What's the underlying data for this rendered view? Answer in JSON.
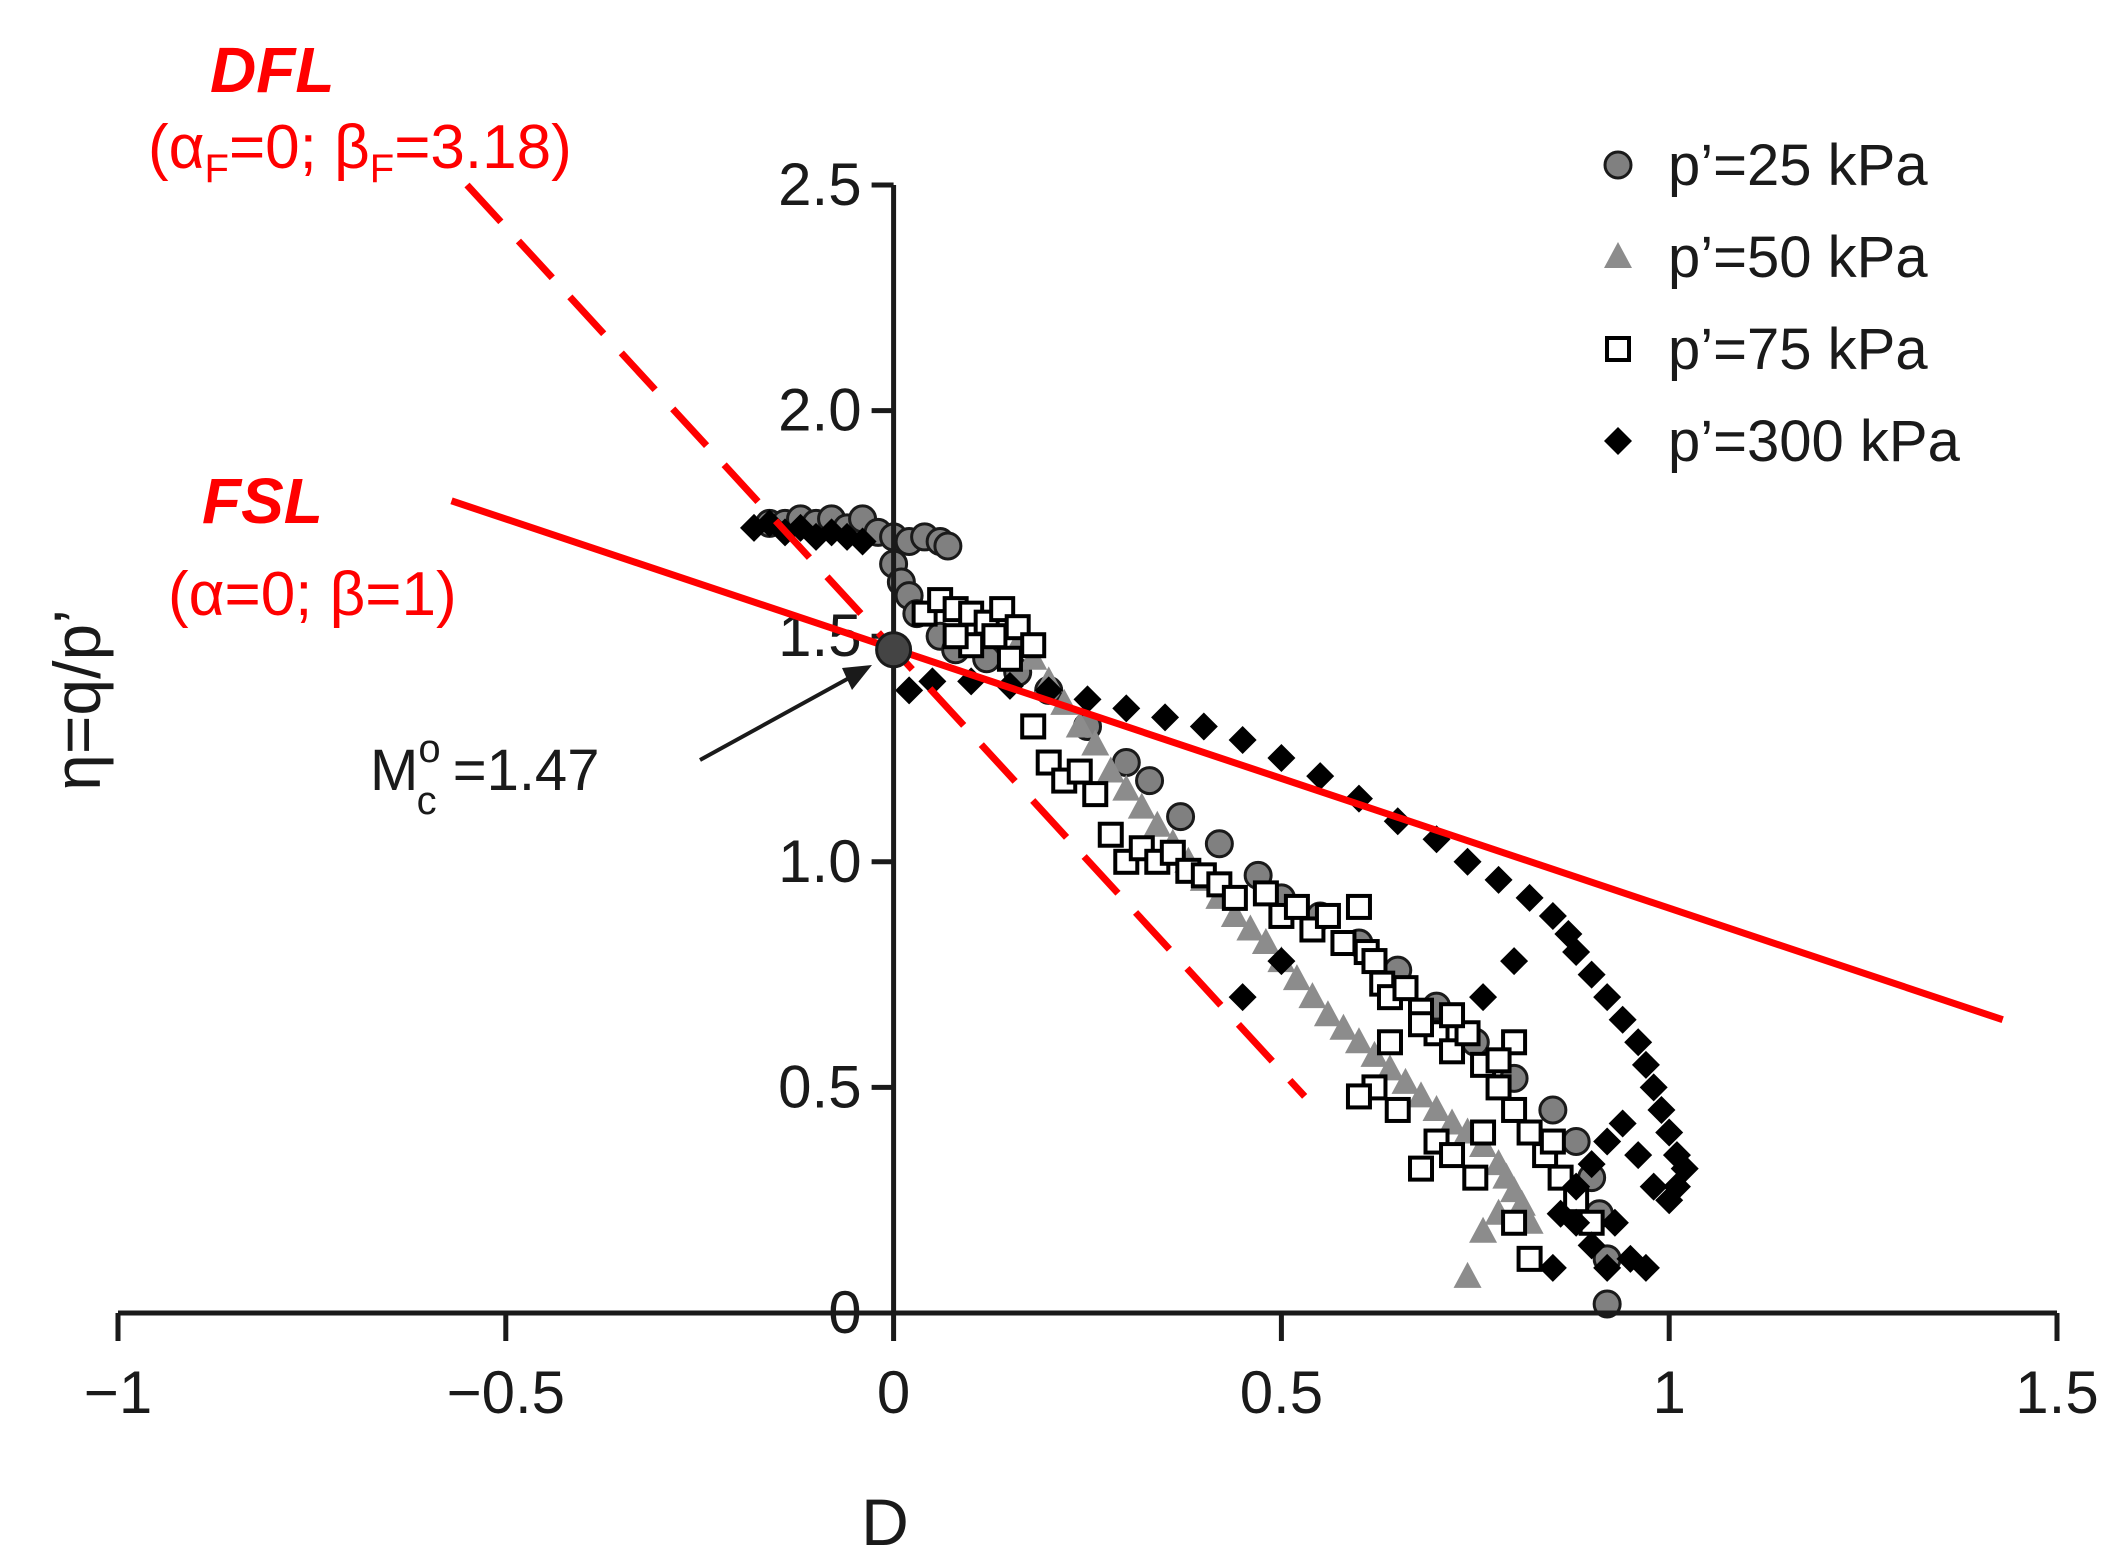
{
  "chart_data": {
    "type": "scatter",
    "title": "",
    "xlabel": "D",
    "ylabel": "η=q/p’",
    "xlim": [
      -1,
      1.5
    ],
    "ylim": [
      0,
      2.5
    ],
    "x_ticks": [
      "−1",
      "−0.5",
      "0",
      "0.5",
      "1",
      "1.5"
    ],
    "y_ticks": [
      "0",
      "0.5",
      "1.0",
      "1.5",
      "2.0",
      "2.5"
    ],
    "grid": false,
    "legend_position": "top-right",
    "series": [
      {
        "name": "p’=25 kPa",
        "marker": "circle",
        "color": "#808080",
        "points": [
          [
            -0.16,
            1.75
          ],
          [
            -0.14,
            1.75
          ],
          [
            -0.12,
            1.76
          ],
          [
            -0.1,
            1.75
          ],
          [
            -0.08,
            1.76
          ],
          [
            -0.06,
            1.74
          ],
          [
            -0.04,
            1.76
          ],
          [
            -0.02,
            1.73
          ],
          [
            0.0,
            1.72
          ],
          [
            0.02,
            1.71
          ],
          [
            0.04,
            1.72
          ],
          [
            0.06,
            1.71
          ],
          [
            0.07,
            1.7
          ],
          [
            0.0,
            1.66
          ],
          [
            0.01,
            1.62
          ],
          [
            0.02,
            1.59
          ],
          [
            0.03,
            1.55
          ],
          [
            0.06,
            1.5
          ],
          [
            0.08,
            1.47
          ],
          [
            0.12,
            1.45
          ],
          [
            0.16,
            1.42
          ],
          [
            0.2,
            1.38
          ],
          [
            0.25,
            1.3
          ],
          [
            0.3,
            1.22
          ],
          [
            0.33,
            1.18
          ],
          [
            0.37,
            1.1
          ],
          [
            0.42,
            1.04
          ],
          [
            0.47,
            0.97
          ],
          [
            0.5,
            0.92
          ],
          [
            0.55,
            0.88
          ],
          [
            0.6,
            0.82
          ],
          [
            0.65,
            0.76
          ],
          [
            0.7,
            0.68
          ],
          [
            0.75,
            0.6
          ],
          [
            0.8,
            0.52
          ],
          [
            0.85,
            0.45
          ],
          [
            0.88,
            0.38
          ],
          [
            0.9,
            0.3
          ],
          [
            0.91,
            0.22
          ],
          [
            0.92,
            0.12
          ],
          [
            0.92,
            0.02
          ]
        ]
      },
      {
        "name": "p’=50 kPa",
        "marker": "triangle",
        "color": "#8c8c8c",
        "points": [
          [
            0.16,
            1.48
          ],
          [
            0.18,
            1.45
          ],
          [
            0.2,
            1.4
          ],
          [
            0.22,
            1.35
          ],
          [
            0.24,
            1.3
          ],
          [
            0.26,
            1.26
          ],
          [
            0.28,
            1.2
          ],
          [
            0.3,
            1.16
          ],
          [
            0.32,
            1.12
          ],
          [
            0.34,
            1.08
          ],
          [
            0.36,
            1.04
          ],
          [
            0.38,
            1.0
          ],
          [
            0.4,
            0.96
          ],
          [
            0.42,
            0.92
          ],
          [
            0.44,
            0.88
          ],
          [
            0.46,
            0.85
          ],
          [
            0.48,
            0.82
          ],
          [
            0.5,
            0.78
          ],
          [
            0.52,
            0.74
          ],
          [
            0.54,
            0.7
          ],
          [
            0.56,
            0.66
          ],
          [
            0.58,
            0.63
          ],
          [
            0.6,
            0.6
          ],
          [
            0.62,
            0.57
          ],
          [
            0.64,
            0.54
          ],
          [
            0.66,
            0.51
          ],
          [
            0.68,
            0.48
          ],
          [
            0.7,
            0.45
          ],
          [
            0.72,
            0.42
          ],
          [
            0.74,
            0.4
          ],
          [
            0.76,
            0.37
          ],
          [
            0.78,
            0.33
          ],
          [
            0.79,
            0.3
          ],
          [
            0.8,
            0.27
          ],
          [
            0.81,
            0.24
          ],
          [
            0.82,
            0.2
          ],
          [
            0.78,
            0.22
          ],
          [
            0.76,
            0.18
          ],
          [
            0.74,
            0.08
          ]
        ]
      },
      {
        "name": "p’=75 kPa",
        "marker": "open-square",
        "color": "#000000",
        "points": [
          [
            0.04,
            1.55
          ],
          [
            0.06,
            1.58
          ],
          [
            0.08,
            1.56
          ],
          [
            0.1,
            1.55
          ],
          [
            0.12,
            1.53
          ],
          [
            0.14,
            1.56
          ],
          [
            0.16,
            1.52
          ],
          [
            0.18,
            1.48
          ],
          [
            0.15,
            1.45
          ],
          [
            0.13,
            1.5
          ],
          [
            0.1,
            1.48
          ],
          [
            0.08,
            1.5
          ],
          [
            0.18,
            1.3
          ],
          [
            0.2,
            1.22
          ],
          [
            0.22,
            1.18
          ],
          [
            0.24,
            1.2
          ],
          [
            0.26,
            1.15
          ],
          [
            0.28,
            1.06
          ],
          [
            0.3,
            1.0
          ],
          [
            0.32,
            1.03
          ],
          [
            0.34,
            1.0
          ],
          [
            0.36,
            1.02
          ],
          [
            0.38,
            0.98
          ],
          [
            0.4,
            0.97
          ],
          [
            0.42,
            0.95
          ],
          [
            0.44,
            0.92
          ],
          [
            0.48,
            0.93
          ],
          [
            0.5,
            0.88
          ],
          [
            0.52,
            0.9
          ],
          [
            0.54,
            0.85
          ],
          [
            0.56,
            0.88
          ],
          [
            0.58,
            0.82
          ],
          [
            0.6,
            0.9
          ],
          [
            0.61,
            0.8
          ],
          [
            0.62,
            0.78
          ],
          [
            0.63,
            0.73
          ],
          [
            0.64,
            0.7
          ],
          [
            0.66,
            0.72
          ],
          [
            0.68,
            0.67
          ],
          [
            0.7,
            0.62
          ],
          [
            0.72,
            0.58
          ],
          [
            0.74,
            0.62
          ],
          [
            0.76,
            0.55
          ],
          [
            0.78,
            0.5
          ],
          [
            0.8,
            0.45
          ],
          [
            0.82,
            0.4
          ],
          [
            0.84,
            0.35
          ],
          [
            0.86,
            0.3
          ],
          [
            0.88,
            0.25
          ],
          [
            0.9,
            0.2
          ],
          [
            0.8,
            0.6
          ],
          [
            0.78,
            0.56
          ],
          [
            0.72,
            0.66
          ],
          [
            0.68,
            0.64
          ],
          [
            0.64,
            0.6
          ],
          [
            0.62,
            0.5
          ],
          [
            0.6,
            0.48
          ],
          [
            0.65,
            0.45
          ],
          [
            0.7,
            0.38
          ],
          [
            0.75,
            0.3
          ],
          [
            0.8,
            0.2
          ],
          [
            0.82,
            0.12
          ],
          [
            0.85,
            0.38
          ],
          [
            0.76,
            0.4
          ],
          [
            0.72,
            0.35
          ],
          [
            0.68,
            0.32
          ]
        ]
      },
      {
        "name": "p’=300 kPa",
        "marker": "diamond",
        "color": "#000000",
        "points": [
          [
            -0.18,
            1.74
          ],
          [
            -0.16,
            1.75
          ],
          [
            -0.14,
            1.73
          ],
          [
            -0.12,
            1.74
          ],
          [
            -0.1,
            1.72
          ],
          [
            -0.08,
            1.73
          ],
          [
            -0.06,
            1.72
          ],
          [
            -0.04,
            1.71
          ],
          [
            0.02,
            1.38
          ],
          [
            0.05,
            1.4
          ],
          [
            0.1,
            1.4
          ],
          [
            0.15,
            1.39
          ],
          [
            0.2,
            1.38
          ],
          [
            0.25,
            1.36
          ],
          [
            0.3,
            1.34
          ],
          [
            0.35,
            1.32
          ],
          [
            0.4,
            1.3
          ],
          [
            0.45,
            1.27
          ],
          [
            0.5,
            1.23
          ],
          [
            0.55,
            1.19
          ],
          [
            0.6,
            1.14
          ],
          [
            0.65,
            1.09
          ],
          [
            0.7,
            1.05
          ],
          [
            0.74,
            1.0
          ],
          [
            0.78,
            0.96
          ],
          [
            0.82,
            0.92
          ],
          [
            0.85,
            0.88
          ],
          [
            0.87,
            0.84
          ],
          [
            0.88,
            0.8
          ],
          [
            0.9,
            0.75
          ],
          [
            0.92,
            0.7
          ],
          [
            0.94,
            0.65
          ],
          [
            0.96,
            0.6
          ],
          [
            0.97,
            0.55
          ],
          [
            0.98,
            0.5
          ],
          [
            0.99,
            0.45
          ],
          [
            1.0,
            0.4
          ],
          [
            1.01,
            0.35
          ],
          [
            1.02,
            0.32
          ],
          [
            1.01,
            0.28
          ],
          [
            1.0,
            0.25
          ],
          [
            0.98,
            0.28
          ],
          [
            0.96,
            0.35
          ],
          [
            0.94,
            0.42
          ],
          [
            0.92,
            0.38
          ],
          [
            0.9,
            0.33
          ],
          [
            0.88,
            0.28
          ],
          [
            0.86,
            0.22
          ],
          [
            0.88,
            0.2
          ],
          [
            0.9,
            0.15
          ],
          [
            0.92,
            0.1
          ],
          [
            0.95,
            0.12
          ],
          [
            0.97,
            0.1
          ],
          [
            0.93,
            0.2
          ],
          [
            0.85,
            0.1
          ],
          [
            0.8,
            0.78
          ],
          [
            0.76,
            0.7
          ],
          [
            0.5,
            0.78
          ],
          [
            0.45,
            0.7
          ]
        ]
      }
    ],
    "lines": [
      {
        "name": "DFL",
        "params": "(αF=0; βF=3.18)",
        "style": "dashed",
        "color": "#ff0000",
        "x": [
          -0.55,
          0.53
        ],
        "y": [
          2.5,
          0.48
        ]
      },
      {
        "name": "FSL",
        "params": "(α=0; β=1)",
        "style": "solid",
        "color": "#ff0000",
        "x": [
          -0.57,
          1.43
        ],
        "y": [
          1.8,
          0.65
        ]
      }
    ],
    "annotations": [
      {
        "label": "M",
        "superscript": "o",
        "subscript": "c",
        "value_text": " =1.47",
        "x": 0.0,
        "y": 1.47
      }
    ]
  },
  "labels": {
    "dfl_name": "DFL",
    "dfl_params_open": "(α",
    "dfl_params_sub1": "F",
    "dfl_params_mid": "=0; β",
    "dfl_params_sub2": "F",
    "dfl_params_close": "=3.18)",
    "fsl_name": "FSL",
    "fsl_params": "(α=0; β=1)",
    "mc_main": "M",
    "mc_sup": "o",
    "mc_sub": "c",
    "mc_value": " =1.47"
  },
  "colors": {
    "accent": "#ff0000",
    "axis": "#1a1a1a",
    "grey_circle": "#808080",
    "grey_triangle": "#8c8c8c"
  }
}
